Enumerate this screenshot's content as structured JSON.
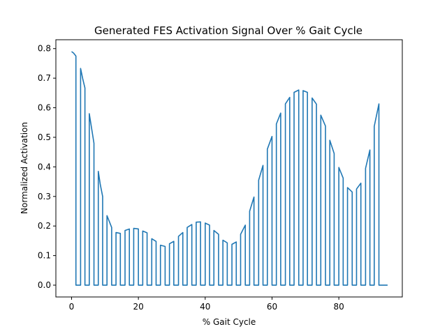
{
  "chart_data": {
    "type": "line",
    "title": "Generated FES Activation Signal Over % Gait Cycle",
    "xlabel": "% Gait Cycle",
    "ylabel": "Normalized Activation",
    "xlim": [
      -4.7,
      99.0
    ],
    "ylim": [
      -0.04,
      0.83
    ],
    "xticks": [
      0,
      20,
      40,
      60,
      80
    ],
    "yticks": [
      0.0,
      0.1,
      0.2,
      0.3,
      0.4,
      0.5,
      0.6,
      0.7,
      0.8
    ],
    "xtick_labels": [
      "0",
      "20",
      "40",
      "60",
      "80"
    ],
    "ytick_labels": [
      "0.0",
      "0.1",
      "0.2",
      "0.3",
      "0.4",
      "0.5",
      "0.6",
      "0.7",
      "0.8"
    ],
    "grid": false,
    "line_color": "#1f77b4",
    "series": [
      {
        "x": [
          0.0,
          0.6,
          1.3,
          1.3,
          2.7,
          2.7,
          3.3,
          4.0,
          4.0,
          5.3,
          5.3,
          6.0,
          6.7,
          6.7,
          8.0,
          8.0,
          8.6,
          9.3,
          9.3,
          10.6,
          10.6,
          11.3,
          12.0,
          12.0,
          13.3,
          13.3,
          14.6,
          14.6,
          16.0,
          16.0,
          17.3,
          17.3,
          18.6,
          18.6,
          20.0,
          20.0,
          21.3,
          21.3,
          22.6,
          22.6,
          24.0,
          24.0,
          25.3,
          25.3,
          26.6,
          26.6,
          28.0,
          28.0,
          29.3,
          29.3,
          30.6,
          30.6,
          32.0,
          32.0,
          33.3,
          33.3,
          34.6,
          34.6,
          36.0,
          36.0,
          37.3,
          37.3,
          38.6,
          38.6,
          40.0,
          40.0,
          41.3,
          41.3,
          42.6,
          42.6,
          44.0,
          44.0,
          45.3,
          45.3,
          46.6,
          46.6,
          48.0,
          48.0,
          49.3,
          49.3,
          50.6,
          50.6,
          52.0,
          52.0,
          53.3,
          53.3,
          54.6,
          54.6,
          56.0,
          56.0,
          57.3,
          57.3,
          58.6,
          58.6,
          60.0,
          60.0,
          61.3,
          61.3,
          62.6,
          62.6,
          64.0,
          64.0,
          65.3,
          65.3,
          66.6,
          66.6,
          68.0,
          68.0,
          69.3,
          69.3,
          70.6,
          70.6,
          72.0,
          72.0,
          73.3,
          73.3,
          74.6,
          74.6,
          76.0,
          76.0,
          77.3,
          77.3,
          78.6,
          78.6,
          80.0,
          80.0,
          81.3,
          81.3,
          82.6,
          82.6,
          84.0,
          84.0,
          85.3,
          85.3,
          86.6,
          86.6,
          88.0,
          88.0,
          89.3,
          89.3,
          90.6,
          90.6,
          92.0,
          92.0,
          93.3,
          93.3,
          94.6
        ],
        "y": [
          0.79,
          0.785,
          0.775,
          0.0,
          0.0,
          0.733,
          0.7,
          0.667,
          0.0,
          0.0,
          0.58,
          0.53,
          0.48,
          0.0,
          0.0,
          0.385,
          0.34,
          0.3,
          0.0,
          0.0,
          0.235,
          0.215,
          0.195,
          0.0,
          0.0,
          0.178,
          0.175,
          0.0,
          0.0,
          0.185,
          0.19,
          0.0,
          0.0,
          0.192,
          0.19,
          0.0,
          0.0,
          0.183,
          0.177,
          0.0,
          0.0,
          0.157,
          0.148,
          0.0,
          0.0,
          0.135,
          0.131,
          0.0,
          0.0,
          0.14,
          0.148,
          0.0,
          0.0,
          0.165,
          0.178,
          0.0,
          0.0,
          0.195,
          0.205,
          0.0,
          0.0,
          0.213,
          0.214,
          0.0,
          0.0,
          0.21,
          0.203,
          0.0,
          0.0,
          0.185,
          0.172,
          0.0,
          0.0,
          0.152,
          0.143,
          0.0,
          0.0,
          0.138,
          0.146,
          0.0,
          0.0,
          0.172,
          0.203,
          0.0,
          0.0,
          0.25,
          0.298,
          0.0,
          0.0,
          0.355,
          0.405,
          0.0,
          0.0,
          0.46,
          0.503,
          0.0,
          0.0,
          0.545,
          0.582,
          0.0,
          0.0,
          0.613,
          0.635,
          0.0,
          0.0,
          0.652,
          0.66,
          0.0,
          0.0,
          0.658,
          0.652,
          0.0,
          0.0,
          0.633,
          0.612,
          0.0,
          0.0,
          0.575,
          0.538,
          0.0,
          0.0,
          0.49,
          0.445,
          0.0,
          0.0,
          0.398,
          0.362,
          0.0,
          0.0,
          0.33,
          0.315,
          0.0,
          0.0,
          0.325,
          0.345,
          0.0,
          0.0,
          0.395,
          0.457,
          0.0,
          0.0,
          0.537,
          0.613,
          0.0,
          0.0,
          0.0,
          0.0
        ]
      }
    ]
  }
}
